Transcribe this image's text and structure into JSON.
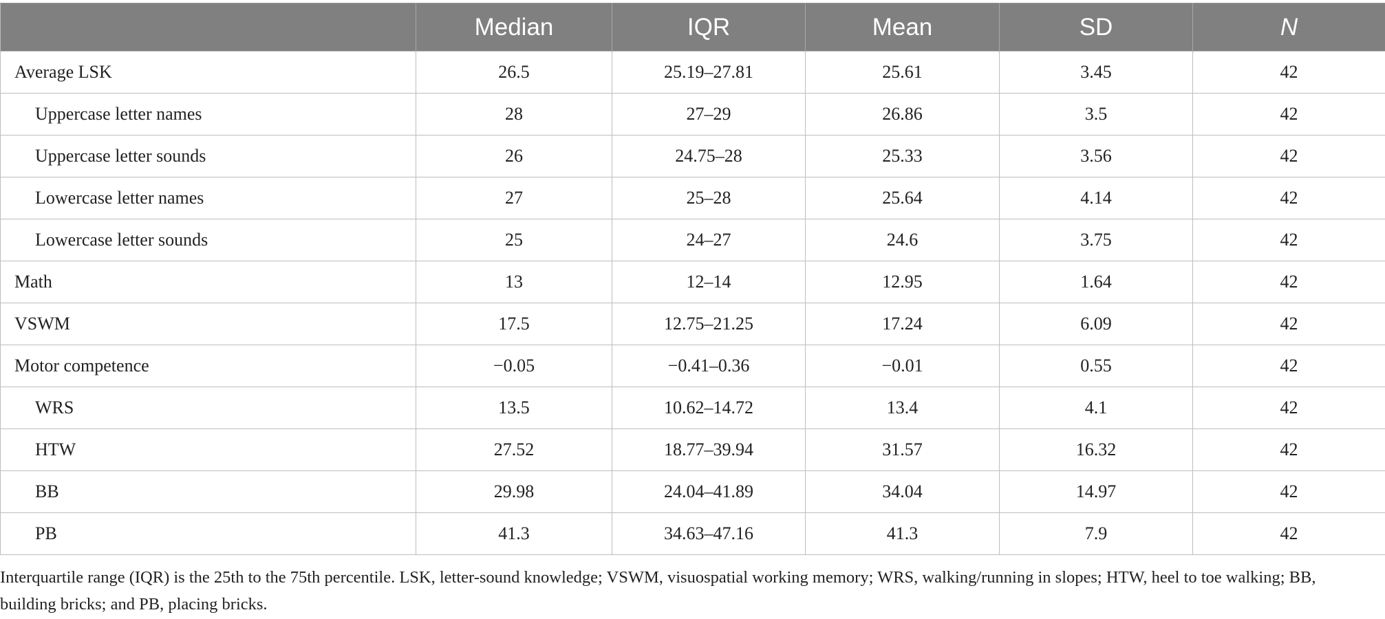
{
  "table": {
    "headers": [
      "",
      "Median",
      "IQR",
      "Mean",
      "SD",
      "N"
    ],
    "rows": [
      {
        "label": "Average LSK",
        "indent": false,
        "median": "26.5",
        "iqr": "25.19–27.81",
        "mean": "25.61",
        "sd": "3.45",
        "n": "42"
      },
      {
        "label": "Uppercase letter names",
        "indent": true,
        "median": "28",
        "iqr": "27–29",
        "mean": "26.86",
        "sd": "3.5",
        "n": "42"
      },
      {
        "label": "Uppercase letter sounds",
        "indent": true,
        "median": "26",
        "iqr": "24.75–28",
        "mean": "25.33",
        "sd": "3.56",
        "n": "42"
      },
      {
        "label": "Lowercase letter names",
        "indent": true,
        "median": "27",
        "iqr": "25–28",
        "mean": "25.64",
        "sd": "4.14",
        "n": "42"
      },
      {
        "label": "Lowercase letter sounds",
        "indent": true,
        "median": "25",
        "iqr": "24–27",
        "mean": "24.6",
        "sd": "3.75",
        "n": "42"
      },
      {
        "label": "Math",
        "indent": false,
        "median": "13",
        "iqr": "12–14",
        "mean": "12.95",
        "sd": "1.64",
        "n": "42"
      },
      {
        "label": "VSWM",
        "indent": false,
        "median": "17.5",
        "iqr": "12.75–21.25",
        "mean": "17.24",
        "sd": "6.09",
        "n": "42"
      },
      {
        "label": "Motor competence",
        "indent": false,
        "median": "−0.05",
        "iqr": "−0.41–0.36",
        "mean": "−0.01",
        "sd": "0.55",
        "n": "42"
      },
      {
        "label": "WRS",
        "indent": true,
        "median": "13.5",
        "iqr": "10.62–14.72",
        "mean": "13.4",
        "sd": "4.1",
        "n": "42"
      },
      {
        "label": "HTW",
        "indent": true,
        "median": "27.52",
        "iqr": "18.77–39.94",
        "mean": "31.57",
        "sd": "16.32",
        "n": "42"
      },
      {
        "label": "BB",
        "indent": true,
        "median": "29.98",
        "iqr": "24.04–41.89",
        "mean": "34.04",
        "sd": "14.97",
        "n": "42"
      },
      {
        "label": "PB",
        "indent": true,
        "median": "41.3",
        "iqr": "34.63–47.16",
        "mean": "41.3",
        "sd": "7.9",
        "n": "42"
      }
    ]
  },
  "footnote": {
    "text": "Interquartile range (IQR) is the 25th to the 75th percentile. LSK, letter-sound knowledge; VSWM, visuospatial working memory; WRS, walking/running in slopes; HTW, heel to toe walking; BB, building bricks; and PB, placing bricks."
  }
}
